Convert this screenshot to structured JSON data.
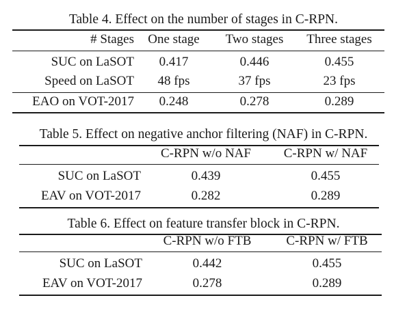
{
  "tables": [
    {
      "caption": "Table 4. Effect on the number of stages in C-RPN.",
      "header": [
        "# Stages",
        "One stage",
        "Two stages",
        "Three stages"
      ],
      "rows": [
        [
          "SUC on LaSOT",
          "0.417",
          "0.446",
          "0.455"
        ],
        [
          "Speed on LaSOT",
          "48 fps",
          "37 fps",
          "23 fps"
        ],
        [
          "EAO on VOT-2017",
          "0.248",
          "0.278",
          "0.289"
        ]
      ]
    },
    {
      "caption": "Table 5. Effect on negative anchor filtering (NAF) in C-RPN.",
      "header": [
        "",
        "C-RPN w/o NAF",
        "C-RPN w/ NAF"
      ],
      "rows": [
        [
          "SUC on LaSOT",
          "0.439",
          "0.455"
        ],
        [
          "EAV on VOT-2017",
          "0.282",
          "0.289"
        ]
      ]
    },
    {
      "caption": "Table 6. Effect on feature transfer block in C-RPN.",
      "header": [
        "",
        "C-RPN w/o FTB",
        "C-RPN w/ FTB"
      ],
      "rows": [
        [
          "SUC on LaSOT",
          "0.442",
          "0.455"
        ],
        [
          "EAV on VOT-2017",
          "0.278",
          "0.289"
        ]
      ]
    }
  ]
}
